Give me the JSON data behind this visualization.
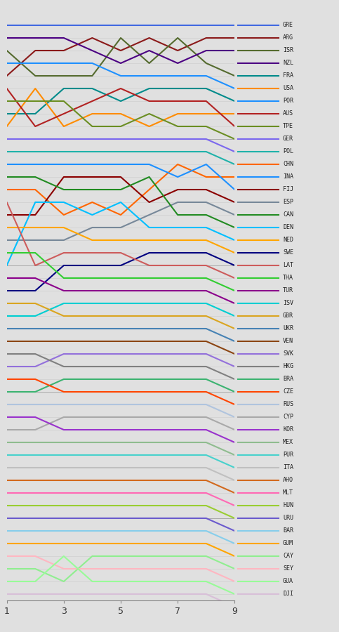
{
  "background_color": "#e0e0e0",
  "x_ticks": [
    1,
    3,
    5,
    7,
    9
  ],
  "countries": [
    "GRE",
    "ARG",
    "ISR",
    "NZL",
    "FRA",
    "USA",
    "POR",
    "AUS",
    "TPE",
    "GER",
    "POL",
    "CHN",
    "INA",
    "FIJ",
    "ESP",
    "CAN",
    "DEN",
    "NED",
    "SWE",
    "LAT",
    "THA",
    "TUR",
    "ISV",
    "GBR",
    "UKR",
    "VEN",
    "SVK",
    "HKG",
    "BRA",
    "CZE",
    "RUS",
    "CYP",
    "KOR",
    "MEX",
    "PUR",
    "ITA",
    "AHO",
    "MLT",
    "HUN",
    "URU",
    "BAR",
    "GUM",
    "CAY",
    "SEY",
    "GUA",
    "DJI"
  ],
  "colors": {
    "GRE": "#4169E1",
    "ARG": "#8B1A1A",
    "ISR": "#556B2F",
    "NZL": "#4B0082",
    "FRA": "#008B8B",
    "USA": "#FF8C00",
    "POR": "#1E90FF",
    "AUS": "#B22222",
    "TPE": "#6B8E23",
    "GER": "#7B68EE",
    "POL": "#20B2AA",
    "CHN": "#FF6600",
    "INA": "#1E90FF",
    "FIJ": "#8B0000",
    "ESP": "#778899",
    "CAN": "#228B22",
    "DEN": "#00BFFF",
    "NED": "#FFA500",
    "SWE": "#000080",
    "LAT": "#CD5C5C",
    "THA": "#32CD32",
    "TUR": "#8B008B",
    "ISV": "#00CED1",
    "GBR": "#DAA520",
    "UKR": "#4682B4",
    "VEN": "#8B4513",
    "SVK": "#9370DB",
    "HKG": "#808080",
    "BRA": "#3CB371",
    "CZE": "#FF4500",
    "RUS": "#B0C4DE",
    "CYP": "#A9A9A9",
    "KOR": "#9932CC",
    "MEX": "#8FBC8F",
    "PUR": "#48D1CC",
    "ITA": "#C0C0C0",
    "AHO": "#D2691E",
    "MLT": "#FF69B4",
    "HUN": "#9ACD32",
    "URU": "#6A5ACD",
    "BAR": "#87CEEB",
    "GUM": "#FFA500",
    "CAY": "#90EE90",
    "SEY": "#FFB6C1",
    "GUA": "#98FB98",
    "DJI": "#D8BFD8"
  },
  "series": {
    "GRE": [
      1,
      1,
      1,
      1,
      1,
      1,
      1,
      1,
      1
    ],
    "ARG": [
      5,
      3,
      3,
      2,
      3,
      2,
      3,
      2,
      2
    ],
    "ISR": [
      3,
      5,
      5,
      5,
      2,
      4,
      2,
      4,
      5
    ],
    "NZL": [
      2,
      2,
      2,
      3,
      4,
      3,
      4,
      3,
      3
    ],
    "FRA": [
      8,
      8,
      6,
      6,
      7,
      6,
      6,
      6,
      7
    ],
    "USA": [
      9,
      6,
      9,
      8,
      8,
      9,
      8,
      8,
      8
    ],
    "POR": [
      4,
      4,
      4,
      4,
      5,
      5,
      5,
      5,
      6
    ],
    "AUS": [
      6,
      9,
      8,
      7,
      6,
      7,
      7,
      7,
      9
    ],
    "TPE": [
      7,
      7,
      7,
      9,
      9,
      8,
      9,
      9,
      10
    ],
    "GER": [
      10,
      10,
      10,
      10,
      10,
      10,
      10,
      10,
      11
    ],
    "POL": [
      11,
      11,
      11,
      11,
      11,
      11,
      11,
      11,
      12
    ],
    "CHN": [
      14,
      14,
      16,
      15,
      16,
      14,
      12,
      13,
      13
    ],
    "INA": [
      12,
      12,
      12,
      12,
      12,
      12,
      13,
      12,
      14
    ],
    "FIJ": [
      16,
      16,
      13,
      13,
      13,
      15,
      14,
      14,
      15
    ],
    "ESP": [
      18,
      18,
      18,
      17,
      17,
      16,
      15,
      15,
      16
    ],
    "CAN": [
      13,
      13,
      14,
      14,
      14,
      13,
      16,
      16,
      17
    ],
    "DEN": [
      20,
      15,
      15,
      16,
      15,
      17,
      17,
      17,
      18
    ],
    "NED": [
      17,
      17,
      17,
      18,
      18,
      18,
      18,
      18,
      19
    ],
    "SWE": [
      22,
      22,
      20,
      20,
      20,
      19,
      19,
      19,
      20
    ],
    "LAT": [
      15,
      20,
      19,
      19,
      19,
      20,
      20,
      20,
      21
    ],
    "THA": [
      19,
      19,
      21,
      21,
      21,
      21,
      21,
      21,
      22
    ],
    "TUR": [
      21,
      21,
      22,
      22,
      22,
      22,
      22,
      22,
      23
    ],
    "ISV": [
      24,
      24,
      23,
      23,
      23,
      23,
      23,
      23,
      24
    ],
    "GBR": [
      23,
      23,
      24,
      24,
      24,
      24,
      24,
      24,
      25
    ],
    "UKR": [
      25,
      25,
      25,
      25,
      25,
      25,
      25,
      25,
      26
    ],
    "VEN": [
      26,
      26,
      26,
      26,
      26,
      26,
      26,
      26,
      27
    ],
    "SVK": [
      28,
      28,
      27,
      27,
      27,
      27,
      27,
      27,
      28
    ],
    "HKG": [
      27,
      27,
      28,
      28,
      28,
      28,
      28,
      28,
      29
    ],
    "BRA": [
      30,
      30,
      29,
      29,
      29,
      29,
      29,
      29,
      30
    ],
    "CZE": [
      29,
      29,
      30,
      30,
      30,
      30,
      30,
      30,
      31
    ],
    "RUS": [
      31,
      31,
      31,
      31,
      31,
      31,
      31,
      31,
      32
    ],
    "CYP": [
      33,
      33,
      32,
      32,
      32,
      32,
      32,
      32,
      33
    ],
    "KOR": [
      32,
      32,
      33,
      33,
      33,
      33,
      33,
      33,
      34
    ],
    "MEX": [
      34,
      34,
      34,
      34,
      34,
      34,
      34,
      34,
      35
    ],
    "PUR": [
      35,
      35,
      35,
      35,
      35,
      35,
      35,
      35,
      36
    ],
    "ITA": [
      36,
      36,
      36,
      36,
      36,
      36,
      36,
      36,
      37
    ],
    "AHO": [
      37,
      37,
      37,
      37,
      37,
      37,
      37,
      37,
      38
    ],
    "MLT": [
      38,
      38,
      38,
      38,
      38,
      38,
      38,
      38,
      39
    ],
    "HUN": [
      39,
      39,
      39,
      39,
      39,
      39,
      39,
      39,
      40
    ],
    "URU": [
      40,
      40,
      40,
      40,
      40,
      40,
      40,
      40,
      41
    ],
    "BAR": [
      41,
      41,
      41,
      41,
      41,
      41,
      41,
      41,
      42
    ],
    "GUM": [
      42,
      42,
      42,
      42,
      42,
      42,
      42,
      42,
      43
    ],
    "CAY": [
      44,
      44,
      45,
      43,
      43,
      43,
      43,
      43,
      44
    ],
    "SEY": [
      43,
      43,
      44,
      44,
      44,
      44,
      44,
      44,
      45
    ],
    "GUA": [
      45,
      45,
      43,
      45,
      45,
      45,
      45,
      45,
      46
    ],
    "DJI": [
      46,
      46,
      46,
      46,
      46,
      46,
      46,
      46,
      47
    ]
  },
  "legend_line_colors": {
    "GRE": "#4169E1",
    "ARG": "#8B1A1A",
    "ISR": "#556B2F",
    "NZL": "#4B0082",
    "FRA": "#008B8B",
    "USA": "#FF8C00",
    "POR": "#1E90FF",
    "AUS": "#B22222",
    "TPE": "#6B8E23",
    "GER": "#7B68EE",
    "POL": "#20B2AA",
    "CHN": "#FF6600",
    "INA": "#1E90FF",
    "FIJ": "#8B0000",
    "ESP": "#778899",
    "CAN": "#228B22",
    "DEN": "#00BFFF",
    "NED": "#FFA500",
    "SWE": "#000080",
    "LAT": "#CD5C5C",
    "THA": "#32CD32",
    "TUR": "#8B008B",
    "ISV": "#00CED1",
    "GBR": "#DAA520",
    "UKR": "#4682B4",
    "VEN": "#8B4513",
    "SVK": "#9370DB",
    "HKG": "#808080",
    "BRA": "#3CB371",
    "CZE": "#FF4500",
    "RUS": "#B0C4DE",
    "CYP": "#A9A9A9",
    "KOR": "#9932CC",
    "MEX": "#8FBC8F",
    "PUR": "#48D1CC",
    "ITA": "#C0C0C0",
    "AHO": "#D2691E",
    "MLT": "#FF69B4",
    "HUN": "#9ACD32",
    "URU": "#6A5ACD",
    "BAR": "#87CEEB",
    "GUM": "#FFA500",
    "CAY": "#90EE90",
    "SEY": "#FFB6C1",
    "GUA": "#98FB98",
    "DJI": "#D8BFD8"
  }
}
